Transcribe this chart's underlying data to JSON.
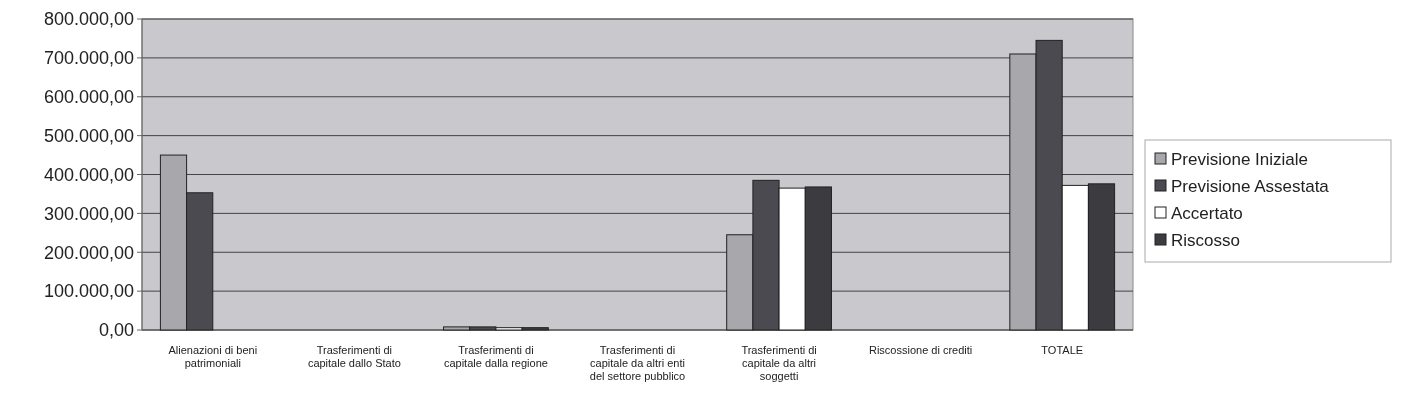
{
  "chart_data": {
    "type": "bar",
    "categories": [
      "Alienazioni di beni patrimoniali",
      "Trasferimenti di capitale dallo Stato",
      "Trasferimenti di capitale dalla regione",
      "Trasferimenti di capitale da altri enti del settore pubblico",
      "Trasferimenti di capitale da altri soggetti",
      "Riscossione di crediti",
      "TOTALE"
    ],
    "series": [
      {
        "name": "Previsione Iniziale",
        "color": "#a8a8ac",
        "values": [
          450000,
          0,
          8000,
          0,
          245000,
          0,
          710000
        ]
      },
      {
        "name": "Previsione Assestata",
        "color": "#4a4a50",
        "values": [
          353000,
          0,
          8000,
          0,
          385000,
          0,
          745000
        ]
      },
      {
        "name": "Accertato",
        "color": "#ffffff",
        "values": [
          0,
          0,
          6000,
          0,
          365000,
          0,
          372000
        ]
      },
      {
        "name": "Riscosso",
        "color": "#3c3c40",
        "values": [
          0,
          0,
          6000,
          0,
          368000,
          0,
          376000
        ]
      }
    ],
    "ylim": [
      0,
      800000
    ],
    "yticks": [
      {
        "value": 0,
        "label": "0,00"
      },
      {
        "value": 100000,
        "label": "100.000,00"
      },
      {
        "value": 200000,
        "label": "200.000,00"
      },
      {
        "value": 300000,
        "label": "300.000,00"
      },
      {
        "value": 400000,
        "label": "400.000,00"
      },
      {
        "value": 500000,
        "label": "500.000,00"
      },
      {
        "value": 600000,
        "label": "600.000,00"
      },
      {
        "value": 700000,
        "label": "700.000,00"
      },
      {
        "value": 800000,
        "label": "800.000,00"
      }
    ],
    "grid": "y",
    "legend": "right"
  }
}
